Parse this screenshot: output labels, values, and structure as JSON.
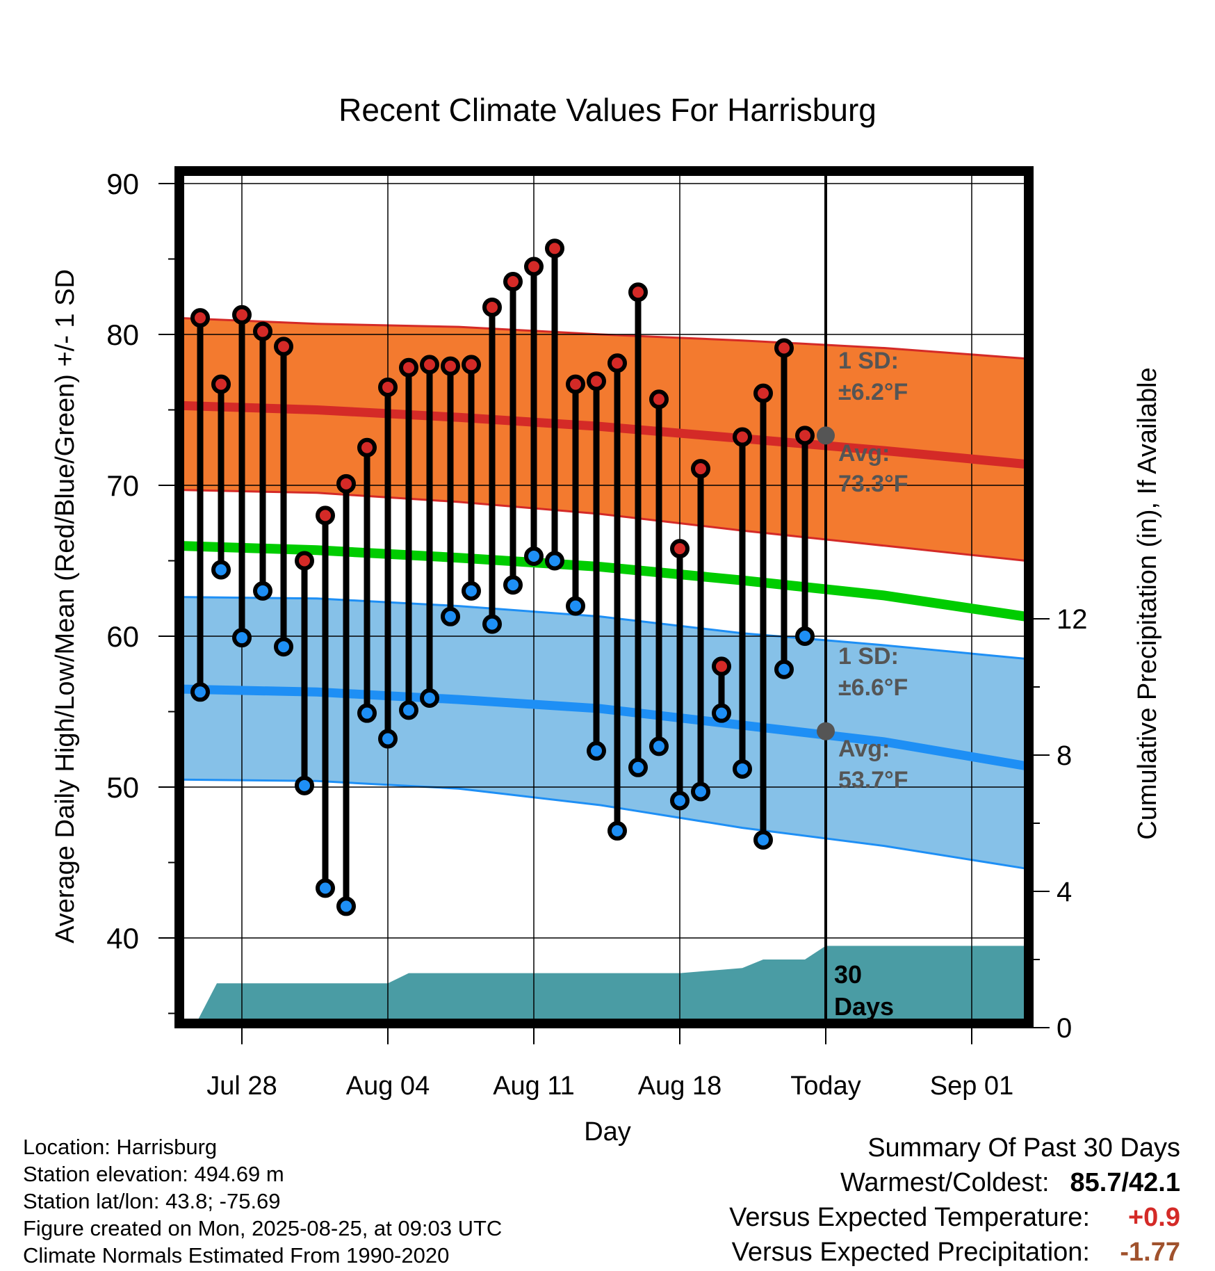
{
  "chart_data": {
    "type": "line",
    "title": "Recent Climate Values For Harrisburg",
    "xlabel": "Day",
    "ylabel": "Average Daily High/Low/Mean (Red/Blue/Green) +/- 1 SD",
    "y2label": "Cumulative Precipitation (in), If Available",
    "ylim": [
      35,
      91
    ],
    "y2lim": [
      0,
      24
    ],
    "yticks": [
      "40",
      "50",
      "60",
      "70",
      "80",
      "90"
    ],
    "y2ticks": [
      "0",
      "4",
      "8",
      "12"
    ],
    "xticks": [
      "Jul 28",
      "Aug 04",
      "Aug 11",
      "Aug 18",
      "Today",
      "Sep 01"
    ],
    "grid": true,
    "days": [
      "Jul 25",
      "Jul 26",
      "Jul 27",
      "Jul 28",
      "Jul 29",
      "Jul 30",
      "Jul 31",
      "Aug 01",
      "Aug 02",
      "Aug 03",
      "Aug 04",
      "Aug 05",
      "Aug 06",
      "Aug 07",
      "Aug 08",
      "Aug 09",
      "Aug 10",
      "Aug 11",
      "Aug 12",
      "Aug 13",
      "Aug 14",
      "Aug 15",
      "Aug 16",
      "Aug 17",
      "Aug 18",
      "Aug 19",
      "Aug 20",
      "Aug 21",
      "Aug 22",
      "Aug 23",
      "Aug 24"
    ],
    "series": [
      {
        "name": "High",
        "values": [
          null,
          81.1,
          76.7,
          81.3,
          80.2,
          79.2,
          65.0,
          68.0,
          70.1,
          72.5,
          76.5,
          77.8,
          78.0,
          77.9,
          78.0,
          81.8,
          83.5,
          84.5,
          85.7,
          76.7,
          76.9,
          78.1,
          82.8,
          75.7,
          65.8,
          71.1,
          58.0,
          73.2,
          76.1,
          79.1,
          73.3
        ]
      },
      {
        "name": "Low",
        "values": [
          null,
          56.3,
          64.4,
          59.9,
          63.0,
          59.3,
          50.1,
          43.3,
          42.1,
          54.9,
          53.2,
          55.1,
          55.9,
          61.3,
          63.0,
          60.8,
          63.4,
          65.3,
          65.0,
          62.0,
          52.4,
          47.1,
          51.3,
          52.7,
          49.1,
          49.7,
          54.9,
          51.2,
          46.5,
          57.8,
          60.0
        ]
      }
    ],
    "normals": {
      "day_range": [
        -0.2,
        40.6
      ],
      "high_mean": [
        75.3,
        75.0,
        74.5,
        73.9,
        73.1,
        72.3,
        71.4
      ],
      "high_upper": [
        81.1,
        80.7,
        80.5,
        80.0,
        79.6,
        79.1,
        78.4
      ],
      "high_lower": [
        69.7,
        69.5,
        68.9,
        68.1,
        67.0,
        66.0,
        65.0
      ],
      "mean": [
        66.0,
        65.7,
        65.2,
        64.6,
        63.7,
        62.7,
        61.3
      ],
      "low_mean": [
        56.5,
        56.3,
        55.8,
        55.2,
        54.1,
        53.0,
        51.4
      ],
      "low_upper": [
        62.6,
        62.5,
        62.0,
        61.3,
        60.2,
        59.4,
        58.5
      ],
      "low_lower": [
        50.5,
        50.4,
        49.9,
        48.8,
        47.3,
        46.1,
        44.6
      ]
    },
    "precipitation": {
      "days": [
        0.7,
        1.8,
        10.0,
        11.0,
        24.0,
        26.0,
        27.0,
        28.0,
        30.0,
        31.0,
        40.6
      ],
      "cumulative": [
        0.0,
        1.3,
        1.3,
        1.6,
        1.6,
        1.7,
        1.75,
        2.0,
        2.0,
        2.4,
        2.4
      ]
    },
    "annotations": {
      "today_index": 31,
      "high_sd_label": "1 SD:",
      "high_sd_value": "±6.2°F",
      "high_avg_label": "Avg:",
      "high_avg_value": "73.3°F",
      "high_avg": 73.3,
      "low_sd_label": "1 SD:",
      "low_sd_value": "±6.6°F",
      "low_avg_label": "Avg:",
      "low_avg_value": "53.7°F",
      "low_avg": 53.7,
      "precip_label_1": "30",
      "precip_label_2": "Days"
    },
    "colors": {
      "high_band": "#f37a2f",
      "high_line": "#d42a27",
      "low_band": "#86c1e8",
      "low_line": "#1e8ff5",
      "mean_line": "#00cc00",
      "precip": "#4a9ca4",
      "high_marker": "#d42a27",
      "low_marker": "#1e8ff5",
      "annotation": "#555555"
    }
  },
  "footer_left": {
    "location": "Location: Harrisburg",
    "elevation": "Station elevation: 494.69 m",
    "latlon": "Station lat/lon: 43.8; -75.69",
    "created": "Figure created on Mon, 2025-08-25, at 09:03 UTC",
    "normals": "Climate Normals Estimated From 1990-2020"
  },
  "footer_right": {
    "title": "Summary Of Past 30 Days",
    "warm_cold_label": "Warmest/Coldest:",
    "warm_cold_value": "85.7/42.1",
    "temp_label": "Versus Expected Temperature:",
    "temp_value": "+0.9",
    "temp_color": "#d42a27",
    "precip_label": "Versus Expected Precipitation:",
    "precip_value": "-1.77",
    "precip_color": "#a0522d"
  }
}
